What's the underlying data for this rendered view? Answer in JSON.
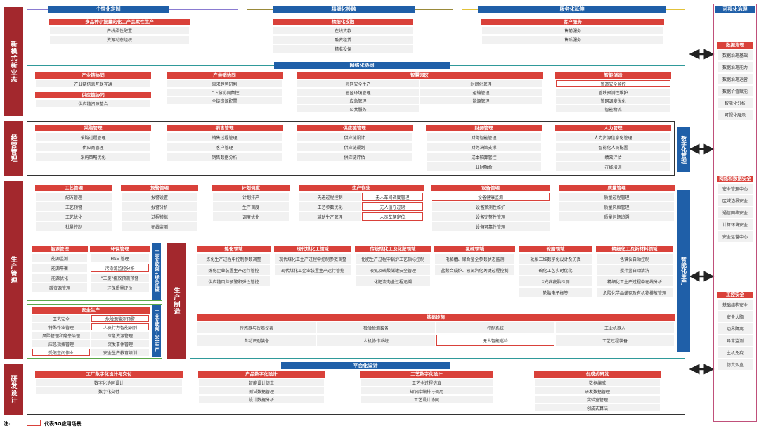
{
  "left_labels": [
    "新模式新业态",
    "经营管理",
    "生产管理",
    "研发设计"
  ],
  "side_labels": [
    "数字化管理",
    "智能化生产"
  ],
  "vertical_labels": [
    "工业互联网+绿色低碳",
    "工业互联网+安全生产",
    "生产制造"
  ],
  "panels": [
    {
      "title": "个性化定制"
    },
    {
      "title": "精细化投融"
    },
    {
      "title": "服务化延伸"
    },
    {
      "title": "网络化协同"
    },
    {
      "title": "平台化设计"
    },
    {
      "title": "可视化治理"
    }
  ],
  "modules": [
    {
      "title": "多品种小批量的化工产品柔性生产",
      "items": [
        "产线柔性配置",
        "资源动态组织"
      ]
    },
    {
      "title": "精细化投融",
      "items": [
        "在线贷款",
        "融资租赁",
        "精准投保"
      ]
    },
    {
      "title": "客户服务",
      "items": [
        "售前服务",
        "售后服务"
      ]
    },
    {
      "title": "产业链协同",
      "items": [
        "产业链信息互联互通"
      ]
    },
    {
      "title": "供应链协同",
      "items": [
        "供应链资源整合"
      ]
    },
    {
      "title": "产供销协同",
      "items": [
        "需求趋势研判",
        "上下游协同集控",
        "全链资源配置"
      ]
    },
    {
      "title": "智慧园区",
      "items": [
        "园区安全生产",
        "封闭化管理",
        "园区环境管理",
        "运输管理",
        "应急管理",
        "能源管理",
        "公共服务"
      ]
    },
    {
      "title": "智能储运",
      "items": [
        "管道安全监控",
        "管线预测性维护",
        "管网调度优化",
        "智能物流"
      ],
      "highlight": [
        0
      ]
    },
    {
      "title": "采购管理",
      "items": [
        "采购过程管理",
        "供应商管理",
        "采购策略优化"
      ]
    },
    {
      "title": "销售管理",
      "items": [
        "销售过程管理",
        "客户管理",
        "销售数据分析"
      ]
    },
    {
      "title": "供应链管理",
      "items": [
        "供应链设计",
        "供应链规划",
        "供应链评估"
      ]
    },
    {
      "title": "财务管理",
      "items": [
        "财务智能管理",
        "财务决策支撑",
        "成本核算管控",
        "业财融合"
      ]
    },
    {
      "title": "人力管理",
      "items": [
        "人力资源信息化管理",
        "智能化人员配置",
        "绩效评估",
        "在线培训"
      ]
    },
    {
      "title": "工艺管理",
      "items": [
        "配方管理",
        "工艺预警",
        "工艺优化",
        "批量控制"
      ]
    },
    {
      "title": "报警管理",
      "items": [
        "报警设置",
        "报警分析",
        "过程模拟",
        "在线监测"
      ]
    },
    {
      "title": "计划调度",
      "items": [
        "计划排产",
        "生产调度",
        "调度优化"
      ]
    },
    {
      "title": "生产作业",
      "items": [
        "先进过程控制",
        "无人车间调度管理",
        "工艺参数优化",
        "无人值守过磅",
        "辅助生产管理",
        "人员车辆定位"
      ],
      "highlight": [
        1,
        3,
        5
      ]
    },
    {
      "title": "设备管理",
      "items": [
        "设备健康监测",
        "设备预测性维护",
        "设备完整性管理",
        "设备可靠性管理"
      ],
      "highlight": [
        0
      ]
    },
    {
      "title": "质量管理",
      "items": [
        "质量过程管理",
        "质量风险管理",
        "质量问题追溯"
      ]
    },
    {
      "title": "能源管理",
      "items": [
        "能源监测",
        "能源平衡",
        "能源优化",
        "碳资源管理"
      ]
    },
    {
      "title": "环保管理",
      "items": [
        "HSE 管理",
        "污染源监控分析",
        "\"三废\"排放预测预警",
        "环保质量评价"
      ],
      "highlight": [
        1
      ]
    },
    {
      "title": "安全生产",
      "items": [
        "工艺安全",
        "危险源监测预警",
        "特殊作业管理",
        "人员行为智能识别",
        "风险管理和隐患治理",
        "应急资源管理",
        "应急指挥管理",
        "突发事件管理",
        "受限空间作业",
        "安全生产教育培训"
      ],
      "highlight": [
        1,
        3,
        8
      ]
    },
    {
      "title": "炼化领域",
      "items": [
        "炼化生产过程中控制参数调整",
        "炼化企业装置生产运行管控",
        "供应链风险预警和弹性管控"
      ]
    },
    {
      "title": "现代煤化工领域",
      "items": [
        "现代煤化工生产过程中控制参数调整",
        "现代煤化工企业装置生产运行管控"
      ]
    },
    {
      "title": "传统煤化工及化肥领域",
      "items": [
        "化肥生产过程中锅炉工艺指标控制",
        "液氨及硫酸储罐安全管理",
        "化肥流向全过程追溯"
      ]
    },
    {
      "title": "氯碱领域",
      "items": [
        "电解槽、聚合釜全参数状态监测",
        "盐酸合成炉、液氯汽化关键过程控制"
      ]
    },
    {
      "title": "轮胎领域",
      "items": [
        "轮胎三维数字化设计及仿真",
        "硫化工艺实时优化",
        "X光病疵胎检测",
        "轮胎电子标签"
      ]
    },
    {
      "title": "精细化工及新材料领域",
      "items": [
        "色谱仪自动控制",
        "搅拌釜自动清洗",
        "精细化工生产过程中在线分析",
        "危险化学品储存及有机物排放管理"
      ]
    },
    {
      "title": "基础设施",
      "items": [
        "传感器与仪器仪表",
        "检验检测装备",
        "控制系统",
        "工业机器人",
        "自动识别装备",
        "人机协作系统",
        "无人智能巡检",
        "工艺过程装备"
      ],
      "highlight": [
        6
      ]
    },
    {
      "title": "工厂数字化设计与交付",
      "items": [
        "数字化协同设计",
        "数字化交付"
      ]
    },
    {
      "title": "产品数字化设计",
      "items": [
        "智能设计仿真",
        "测试数据管理",
        "设计数据分析"
      ]
    },
    {
      "title": "工艺数字化设计",
      "items": [
        "工艺全过程仿真",
        "知识库编排与调用",
        "工艺设计协同"
      ]
    },
    {
      "title": "创成式研发",
      "items": [
        "数据编成",
        "研发数据管理",
        "实验室管理",
        "创成式算法"
      ]
    },
    {
      "title": "数据治理",
      "items": [
        "数据治理基础",
        "数据治理能力",
        "数据治理运营",
        "数据价值赋能",
        "智能化分析",
        "可视化展示"
      ]
    },
    {
      "title": "网络和数据安全",
      "items": [
        "安全管理中心",
        "区域边界安全",
        "通信网络安全",
        "计算环境安全",
        "安全运营中心"
      ]
    },
    {
      "title": "工控安全",
      "items": [
        "基础结构安全",
        "安全大脑",
        "边界隔离",
        "异常监测",
        "主机免疫",
        "仿真沙盒"
      ]
    }
  ],
  "legend": {
    "prefix": "注:",
    "label": "代表5G应用场景"
  }
}
